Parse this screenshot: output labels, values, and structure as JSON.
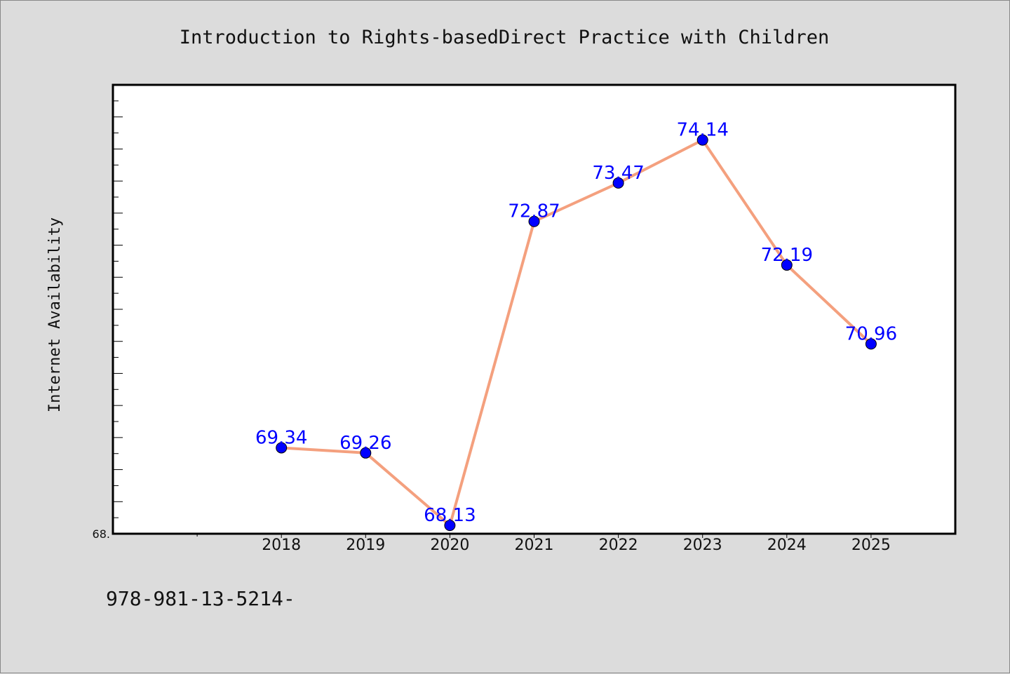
{
  "chart_data": {
    "type": "line",
    "title": "Introduction to Rights-basedDirect Practice with Children",
    "xlabel": "",
    "ylabel": "Internet Availability",
    "categories": [
      "2018",
      "2019",
      "2020",
      "2021",
      "2022",
      "2023",
      "2024",
      "2025"
    ],
    "values": [
      69.34,
      69.26,
      68.13,
      72.87,
      73.47,
      74.14,
      72.19,
      70.96
    ],
    "value_labels": [
      "69.34",
      "69.26",
      "68.13",
      "72.87",
      "73.47",
      "74.14",
      "72.19",
      "70.96"
    ],
    "ylim": [
      68.0,
      75.0
    ],
    "y_tick_label": "68.",
    "x_axis_slots": 10,
    "grid": false,
    "legend": "none",
    "line_color": "#f4a07e",
    "marker_color": "#0000ff"
  },
  "footer": {
    "isbn": "978-981-13-5214-"
  }
}
